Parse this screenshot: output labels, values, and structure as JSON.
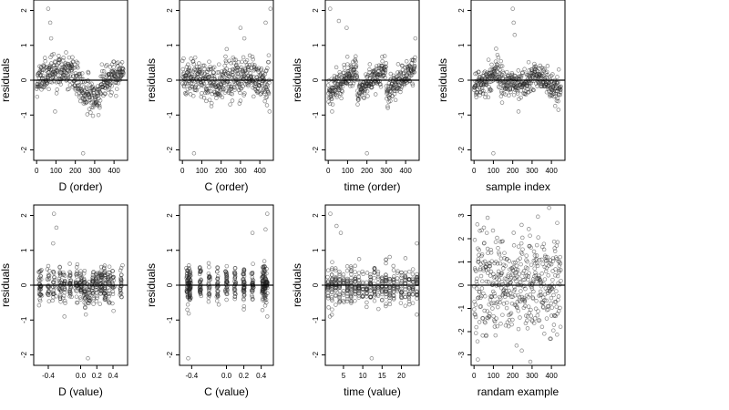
{
  "chart_data": [
    {
      "type": "scatter",
      "xlabel": "D (order)",
      "ylabel": "residuals",
      "xticks": [
        0,
        100,
        200,
        300,
        400
      ],
      "yticks": [
        -2,
        -1,
        0,
        1,
        2
      ],
      "xlim": [
        -15,
        470
      ],
      "ylim": [
        -2.3,
        2.3
      ],
      "zero_line": 0,
      "n": 450,
      "pattern": "wave_low",
      "seed": 11,
      "outliers": [
        {
          "x": 60,
          "y": 2.05
        },
        {
          "x": 70,
          "y": 1.65
        },
        {
          "x": 75,
          "y": 1.2
        },
        {
          "x": 240,
          "y": -2.1
        },
        {
          "x": 95,
          "y": -0.9
        }
      ]
    },
    {
      "type": "scatter",
      "xlabel": "C (order)",
      "ylabel": "residuals",
      "xticks": [
        0,
        100,
        200,
        300,
        400
      ],
      "yticks": [
        -2,
        -1,
        0,
        1,
        2
      ],
      "xlim": [
        -15,
        470
      ],
      "ylim": [
        -2.3,
        2.3
      ],
      "zero_line": 0,
      "n": 450,
      "pattern": "flat",
      "seed": 23,
      "outliers": [
        {
          "x": 455,
          "y": 2.05
        },
        {
          "x": 430,
          "y": 1.65
        },
        {
          "x": 300,
          "y": 1.5
        },
        {
          "x": 320,
          "y": 1.2
        },
        {
          "x": 60,
          "y": -2.1
        },
        {
          "x": 450,
          "y": -0.9
        }
      ]
    },
    {
      "type": "scatter",
      "xlabel": "time (order)",
      "ylabel": "residuals",
      "xticks": [
        0,
        100,
        200,
        300,
        400
      ],
      "yticks": [
        -2,
        -1,
        0,
        1,
        2
      ],
      "xlim": [
        -15,
        470
      ],
      "ylim": [
        -2.3,
        2.3
      ],
      "zero_line": 0,
      "n": 450,
      "pattern": "saw",
      "seed": 37,
      "outliers": [
        {
          "x": 10,
          "y": 2.05
        },
        {
          "x": 55,
          "y": 1.7
        },
        {
          "x": 95,
          "y": 1.5
        },
        {
          "x": 200,
          "y": -2.1
        },
        {
          "x": 20,
          "y": -0.9
        },
        {
          "x": 450,
          "y": 1.2
        }
      ]
    },
    {
      "type": "scatter",
      "xlabel": "sample index",
      "ylabel": "residuals",
      "xticks": [
        0,
        100,
        200,
        300,
        400
      ],
      "yticks": [
        -2,
        -1,
        0,
        1,
        2
      ],
      "xlim": [
        -15,
        470
      ],
      "ylim": [
        -2.3,
        2.3
      ],
      "zero_line": 0,
      "n": 450,
      "pattern": "bumps",
      "seed": 41,
      "outliers": [
        {
          "x": 200,
          "y": 2.05
        },
        {
          "x": 205,
          "y": 1.65
        },
        {
          "x": 210,
          "y": 1.3
        },
        {
          "x": 100,
          "y": -2.1
        },
        {
          "x": 230,
          "y": -0.9
        }
      ]
    },
    {
      "type": "scatter",
      "xlabel": "D (value)",
      "ylabel": "residuals",
      "xticks": [
        -0.4,
        0.0,
        0.2,
        0.4
      ],
      "xtick_labels": [
        "-0.4",
        "0.0",
        "0.2",
        "0.4"
      ],
      "yticks": [
        -2,
        -1,
        0,
        1,
        2
      ],
      "xlim": [
        -0.58,
        0.58
      ],
      "ylim": [
        -2.3,
        2.3
      ],
      "zero_line": 0,
      "n": 450,
      "pattern": "clustered_d",
      "seed": 53,
      "outliers": [
        {
          "x": -0.33,
          "y": 2.05
        },
        {
          "x": -0.3,
          "y": 1.65
        },
        {
          "x": -0.34,
          "y": 1.2
        },
        {
          "x": 0.09,
          "y": -2.1
        },
        {
          "x": -0.2,
          "y": -0.9
        }
      ]
    },
    {
      "type": "scatter",
      "xlabel": "C (value)",
      "ylabel": "residuals",
      "xticks": [
        -0.4,
        0.0,
        0.2,
        0.4
      ],
      "xtick_labels": [
        "-0.4",
        "0.0",
        "0.2",
        "0.4"
      ],
      "yticks": [
        -2,
        -1,
        0,
        1,
        2
      ],
      "xlim": [
        -0.54,
        0.54
      ],
      "ylim": [
        -2.3,
        2.3
      ],
      "zero_line": 0,
      "n": 450,
      "pattern": "clustered_c",
      "seed": 61,
      "outliers": [
        {
          "x": 0.47,
          "y": 2.05
        },
        {
          "x": 0.45,
          "y": 1.6
        },
        {
          "x": 0.3,
          "y": 1.5
        },
        {
          "x": 0.47,
          "y": -0.9
        },
        {
          "x": -0.44,
          "y": -2.1
        }
      ]
    },
    {
      "type": "scatter",
      "xlabel": "time (value)",
      "ylabel": "residuals",
      "xticks": [
        5,
        10,
        15,
        20
      ],
      "yticks": [
        -2,
        -1,
        0,
        1,
        2
      ],
      "xlim": [
        0.3,
        24.6
      ],
      "ylim": [
        -2.3,
        2.3
      ],
      "zero_line": 0,
      "n": 450,
      "pattern": "clustered_t",
      "seed": 71,
      "outliers": [
        {
          "x": 1.6,
          "y": 2.05
        },
        {
          "x": 3.2,
          "y": 1.7
        },
        {
          "x": 4.3,
          "y": 1.5
        },
        {
          "x": 12.3,
          "y": -2.1
        },
        {
          "x": 1.5,
          "y": -0.9
        },
        {
          "x": 24.0,
          "y": 1.2
        }
      ]
    },
    {
      "type": "scatter",
      "xlabel": "randam example",
      "ylabel": "",
      "xticks": [
        0,
        100,
        200,
        300,
        400
      ],
      "yticks": [
        -3,
        -2,
        -1,
        0,
        1,
        2,
        3
      ],
      "xlim": [
        -15,
        470
      ],
      "ylim": [
        -3.45,
        3.45
      ],
      "zero_line": 0,
      "n": 450,
      "pattern": "random",
      "seed": 83,
      "outliers": [
        {
          "x": 20,
          "y": -3.2
        },
        {
          "x": 330,
          "y": 2.95
        },
        {
          "x": 70,
          "y": 2.9
        },
        {
          "x": 220,
          "y": -2.6
        }
      ]
    }
  ]
}
